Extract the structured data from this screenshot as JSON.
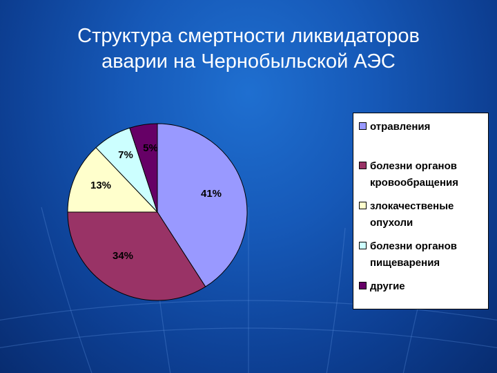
{
  "title": {
    "line1": "Структура смертности ликвидаторов",
    "line2": "аварии на Чернобыльской АЭС"
  },
  "chart_data": {
    "type": "pie",
    "title": "Структура смертности ликвидаторов аварии на Чернобыльской АЭС",
    "categories": [
      "отравления",
      "болезни органов кровообращения",
      "злокачественые опухоли",
      "болезни органов пищеварения",
      "другие"
    ],
    "values": [
      41,
      34,
      13,
      7,
      5
    ],
    "labels": [
      "41%",
      "34%",
      "13%",
      "7%",
      "5%"
    ],
    "colors": [
      "#9999ff",
      "#993366",
      "#ffffcc",
      "#ccffff",
      "#660066"
    ],
    "legend_position": "right"
  },
  "legend": {
    "items": [
      {
        "lines": [
          "отравления"
        ]
      },
      {
        "lines": [
          "болезни органов",
          "кровообращения"
        ]
      },
      {
        "lines": [
          "злокачественые",
          "опухоли"
        ]
      },
      {
        "lines": [
          "болезни органов",
          "пищеварения"
        ]
      },
      {
        "lines": [
          "другие"
        ]
      }
    ]
  }
}
